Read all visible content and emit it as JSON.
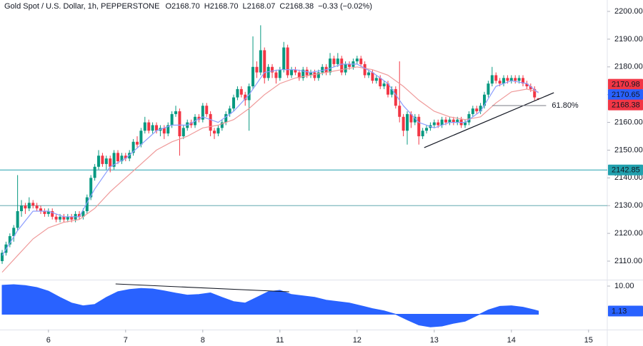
{
  "chart_data": {
    "type": "candlestick",
    "title": "Gold Spot / U.S. Dollar, 1h, PEPPERSTONE",
    "ohlc_labels": [
      "O2168.70",
      "H2168.70",
      "L2168.07",
      "C2168.38"
    ],
    "change": "−0.33 (−0.02%)",
    "up_color": "#089981",
    "down_color": "#f23645",
    "grid": false,
    "xlim": [
      -0.56,
      156.85
    ],
    "xticks": [
      {
        "value": 12,
        "label": "6"
      },
      {
        "value": 32,
        "label": "7"
      },
      {
        "value": 52,
        "label": "8"
      },
      {
        "value": 72,
        "label": "11"
      },
      {
        "value": 92,
        "label": "12"
      },
      {
        "value": 112,
        "label": "13"
      },
      {
        "value": 132,
        "label": "14"
      },
      {
        "value": 152,
        "label": "15"
      }
    ],
    "ylim": [
      2103.32,
      2204.11
    ],
    "yticks": [
      {
        "value": 2110,
        "label": "2110.00"
      },
      {
        "value": 2120,
        "label": "2120.00"
      },
      {
        "value": 2130,
        "label": "2130.00"
      },
      {
        "value": 2140,
        "label": "2140.00"
      },
      {
        "value": 2150,
        "label": "2150.00"
      },
      {
        "value": 2160,
        "label": "2160.00"
      },
      {
        "value": 2170,
        "label": "2170.00"
      },
      {
        "value": 2180,
        "label": "2180.00"
      },
      {
        "value": 2190,
        "label": "2190.00"
      },
      {
        "value": 2200,
        "label": "2200.00"
      }
    ],
    "candles": [
      [
        2110,
        2114,
        2109,
        2113
      ],
      [
        2113,
        2117,
        2112,
        2116
      ],
      [
        2116,
        2120,
        2115,
        2119
      ],
      [
        2119,
        2123,
        2117,
        2122
      ],
      [
        2122,
        2141,
        2121,
        2128
      ],
      [
        2128,
        2132,
        2126,
        2130
      ],
      [
        2130,
        2131,
        2127,
        2129
      ],
      [
        2129,
        2133,
        2128,
        2131
      ],
      [
        2131,
        2132,
        2129,
        2130
      ],
      [
        2130,
        2131,
        2128,
        2129
      ],
      [
        2129,
        2130,
        2127,
        2128
      ],
      [
        2128,
        2129,
        2126,
        2127
      ],
      [
        2127,
        2129,
        2126,
        2128
      ],
      [
        2128,
        2129,
        2125,
        2126
      ],
      [
        2126,
        2127,
        2124,
        2125
      ],
      [
        2125,
        2127,
        2124,
        2126
      ],
      [
        2126,
        2127,
        2124,
        2125
      ],
      [
        2125,
        2127,
        2124,
        2126
      ],
      [
        2126,
        2127,
        2124,
        2125
      ],
      [
        2125,
        2128,
        2124,
        2127
      ],
      [
        2127,
        2128,
        2125,
        2126
      ],
      [
        2126,
        2129,
        2125,
        2128
      ],
      [
        2128,
        2134,
        2127,
        2133
      ],
      [
        2133,
        2141,
        2132,
        2140
      ],
      [
        2140,
        2145,
        2139,
        2144
      ],
      [
        2144,
        2150,
        2143,
        2148
      ],
      [
        2148,
        2149,
        2144,
        2145
      ],
      [
        2145,
        2148,
        2143,
        2147
      ],
      [
        2147,
        2148,
        2142,
        2144
      ],
      [
        2144,
        2150,
        2143,
        2149
      ],
      [
        2149,
        2150,
        2145,
        2146
      ],
      [
        2146,
        2149,
        2145,
        2148
      ],
      [
        2148,
        2149,
        2146,
        2147
      ],
      [
        2147,
        2150,
        2146,
        2149
      ],
      [
        2149,
        2154,
        2148,
        2153
      ],
      [
        2153,
        2155,
        2151,
        2152
      ],
      [
        2152,
        2158,
        2151,
        2157
      ],
      [
        2157,
        2162,
        2156,
        2160
      ],
      [
        2160,
        2161,
        2156,
        2157
      ],
      [
        2157,
        2160,
        2156,
        2159
      ],
      [
        2159,
        2160,
        2156,
        2157
      ],
      [
        2157,
        2159,
        2155,
        2158
      ],
      [
        2158,
        2159,
        2154,
        2156
      ],
      [
        2156,
        2160,
        2155,
        2159
      ],
      [
        2159,
        2164,
        2158,
        2163
      ],
      [
        2163,
        2166,
        2162,
        2164
      ],
      [
        2164,
        2165,
        2148,
        2155
      ],
      [
        2155,
        2159,
        2154,
        2158
      ],
      [
        2158,
        2161,
        2157,
        2160
      ],
      [
        2160,
        2161,
        2158,
        2159
      ],
      [
        2159,
        2163,
        2158,
        2162
      ],
      [
        2162,
        2163,
        2160,
        2161
      ],
      [
        2161,
        2167,
        2160,
        2166
      ],
      [
        2166,
        2167,
        2162,
        2163
      ],
      [
        2163,
        2164,
        2155,
        2157
      ],
      [
        2157,
        2158,
        2154,
        2156
      ],
      [
        2156,
        2159,
        2155,
        2158
      ],
      [
        2158,
        2161,
        2157,
        2160
      ],
      [
        2160,
        2164,
        2159,
        2163
      ],
      [
        2163,
        2166,
        2162,
        2165
      ],
      [
        2165,
        2170,
        2164,
        2169
      ],
      [
        2169,
        2173,
        2168,
        2172
      ],
      [
        2172,
        2173,
        2169,
        2170
      ],
      [
        2170,
        2171,
        2166,
        2168
      ],
      [
        2168,
        2174,
        2157,
        2173
      ],
      [
        2173,
        2191,
        2172,
        2180
      ],
      [
        2180,
        2182,
        2176,
        2178
      ],
      [
        2178,
        2195,
        2177,
        2186
      ],
      [
        2186,
        2187,
        2174,
        2176
      ],
      [
        2176,
        2181,
        2175,
        2180
      ],
      [
        2180,
        2181,
        2176,
        2178
      ],
      [
        2178,
        2179,
        2174,
        2176
      ],
      [
        2176,
        2180,
        2175,
        2179
      ],
      [
        2179,
        2189,
        2178,
        2187
      ],
      [
        2187,
        2188,
        2176,
        2177
      ],
      [
        2177,
        2180,
        2176,
        2179
      ],
      [
        2179,
        2180,
        2177,
        2178
      ],
      [
        2178,
        2179,
        2175,
        2176
      ],
      [
        2176,
        2180,
        2175,
        2179
      ],
      [
        2179,
        2180,
        2176,
        2177
      ],
      [
        2177,
        2179,
        2176,
        2178
      ],
      [
        2178,
        2179,
        2175,
        2176
      ],
      [
        2176,
        2179,
        2175,
        2178
      ],
      [
        2178,
        2181,
        2177,
        2180
      ],
      [
        2180,
        2181,
        2177,
        2178
      ],
      [
        2178,
        2185,
        2177,
        2183
      ],
      [
        2183,
        2184,
        2180,
        2181
      ],
      [
        2181,
        2185,
        2180,
        2183
      ],
      [
        2183,
        2184,
        2177,
        2178
      ],
      [
        2178,
        2182,
        2177,
        2181
      ],
      [
        2181,
        2182,
        2179,
        2180
      ],
      [
        2180,
        2183,
        2179,
        2182
      ],
      [
        2182,
        2184,
        2181,
        2183
      ],
      [
        2183,
        2184,
        2180,
        2181
      ],
      [
        2181,
        2182,
        2176,
        2177
      ],
      [
        2177,
        2179,
        2176,
        2178
      ],
      [
        2178,
        2179,
        2174,
        2175
      ],
      [
        2175,
        2177,
        2174,
        2176
      ],
      [
        2176,
        2177,
        2172,
        2173
      ],
      [
        2173,
        2175,
        2172,
        2174
      ],
      [
        2174,
        2175,
        2169,
        2170
      ],
      [
        2170,
        2173,
        2169,
        2172
      ],
      [
        2172,
        2173,
        2165,
        2166
      ],
      [
        2166,
        2182,
        2160,
        2162
      ],
      [
        2162,
        2163,
        2155,
        2157
      ],
      [
        2157,
        2164,
        2152,
        2163
      ],
      [
        2163,
        2164,
        2158,
        2160
      ],
      [
        2160,
        2163,
        2159,
        2162
      ],
      [
        2162,
        2163,
        2152,
        2155
      ],
      [
        2155,
        2158,
        2154,
        2157
      ],
      [
        2157,
        2159,
        2156,
        2158
      ],
      [
        2158,
        2160,
        2157,
        2159
      ],
      [
        2159,
        2161,
        2158,
        2160
      ],
      [
        2160,
        2161,
        2158,
        2159
      ],
      [
        2159,
        2162,
        2158,
        2161
      ],
      [
        2161,
        2162,
        2159,
        2160
      ],
      [
        2160,
        2162,
        2159,
        2161
      ],
      [
        2161,
        2162,
        2159,
        2160
      ],
      [
        2160,
        2162,
        2159,
        2161
      ],
      [
        2161,
        2162,
        2158,
        2159
      ],
      [
        2159,
        2161,
        2158,
        2160
      ],
      [
        2160,
        2164,
        2159,
        2163
      ],
      [
        2163,
        2166,
        2162,
        2165
      ],
      [
        2165,
        2166,
        2163,
        2164
      ],
      [
        2164,
        2167,
        2163,
        2166
      ],
      [
        2166,
        2171,
        2165,
        2170
      ],
      [
        2170,
        2175,
        2169,
        2174
      ],
      [
        2174,
        2180,
        2173,
        2177
      ],
      [
        2177,
        2178,
        2174,
        2175
      ],
      [
        2175,
        2176,
        2173,
        2174
      ],
      [
        2174,
        2177,
        2173,
        2176
      ],
      [
        2176,
        2177,
        2174,
        2175
      ],
      [
        2175,
        2177,
        2174,
        2176
      ],
      [
        2176,
        2177,
        2174,
        2175
      ],
      [
        2175,
        2177,
        2174,
        2176
      ],
      [
        2176,
        2177,
        2173,
        2174
      ],
      [
        2174,
        2175,
        2172,
        2173
      ],
      [
        2173,
        2174,
        2171,
        2172
      ],
      [
        2172,
        2173,
        2168,
        2169
      ],
      [
        2168.7,
        2168.7,
        2168.07,
        2168.38
      ]
    ],
    "series": [
      {
        "color": "#f23645",
        "line_color": "#ef9a9a",
        "x": [
          0,
          4,
          8,
          12,
          16,
          20,
          24,
          28,
          32,
          36,
          40,
          44,
          48,
          52,
          56,
          60,
          64,
          68,
          72,
          76,
          80,
          84,
          88,
          92,
          96,
          100,
          104,
          108,
          112,
          116,
          120,
          124,
          128,
          132,
          136,
          139
        ],
        "values": [
          2106,
          2112,
          2118,
          2122,
          2124,
          2125,
          2129,
          2135,
          2140,
          2145,
          2150,
          2153,
          2155,
          2158,
          2159,
          2161,
          2165,
          2170,
          2174,
          2176,
          2177,
          2178,
          2179,
          2180,
          2179,
          2177,
          2173,
          2168,
          2164,
          2162,
          2161,
          2162,
          2167,
          2171,
          2172,
          2170.98
        ]
      },
      {
        "color": "#2962ff",
        "line_color": "#8c9eff",
        "x": [
          0,
          4,
          8,
          12,
          16,
          20,
          24,
          28,
          32,
          36,
          40,
          44,
          48,
          52,
          56,
          60,
          64,
          68,
          72,
          76,
          80,
          84,
          88,
          92,
          96,
          100,
          104,
          108,
          112,
          116,
          120,
          124,
          128,
          132,
          136,
          139
        ],
        "values": [
          2112,
          2121,
          2128,
          2128,
          2126,
          2126,
          2136,
          2144,
          2147,
          2152,
          2157,
          2159,
          2159,
          2162,
          2160,
          2164,
          2170,
          2178,
          2179,
          2179,
          2178,
          2179,
          2181,
          2181,
          2178,
          2174,
          2166,
          2160,
          2158,
          2160,
          2160,
          2164,
          2173,
          2175,
          2174,
          2170.65
        ]
      }
    ],
    "level_lines": [
      {
        "value": 2142.85,
        "tag": true,
        "color": "#22a1ae"
      },
      {
        "value": 2130,
        "tag": false,
        "color": "#4a9ca5"
      }
    ],
    "trendlines": [
      {
        "x": [
          109.4,
          143
        ],
        "y": [
          2150.9,
          2170.7
        ]
      }
    ],
    "fib": {
      "label": "61.80%",
      "price": 2166.06,
      "x": [
        127,
        141
      ]
    },
    "indicator": {
      "type": "area",
      "color": "#2962ff",
      "ylim": [
        -5.46,
        12.03
      ],
      "yticks": [
        {
          "value": 10,
          "label": "10.00"
        }
      ],
      "x": [
        0,
        3,
        6,
        9,
        12,
        15,
        18,
        21,
        24,
        27,
        30,
        33,
        36,
        39,
        42,
        45,
        48,
        51,
        54,
        57,
        60,
        63,
        66,
        69,
        72,
        75,
        78,
        81,
        84,
        87,
        90,
        93,
        96,
        99,
        102,
        105,
        108,
        111,
        114,
        117,
        120,
        123,
        126,
        129,
        132,
        135,
        138,
        139
      ],
      "values": [
        10.3,
        10.5,
        10.2,
        9.5,
        8.2,
        6.0,
        4.0,
        3.0,
        3.5,
        6.0,
        8.0,
        8.8,
        9.2,
        9.0,
        8.3,
        7.5,
        6.8,
        7.0,
        7.6,
        6.0,
        4.5,
        4.0,
        6.0,
        8.0,
        8.5,
        7.0,
        6.5,
        6.0,
        5.0,
        4.5,
        4.0,
        3.0,
        2.0,
        1.2,
        0,
        -2.0,
        -3.8,
        -4.5,
        -4.2,
        -3.2,
        -2.5,
        -0.5,
        1.5,
        2.8,
        3.0,
        2.5,
        1.5,
        1.13
      ],
      "trendline": {
        "x": [
          29.4,
          74.4
        ],
        "y": [
          10.76,
          7.97
        ]
      }
    }
  }
}
